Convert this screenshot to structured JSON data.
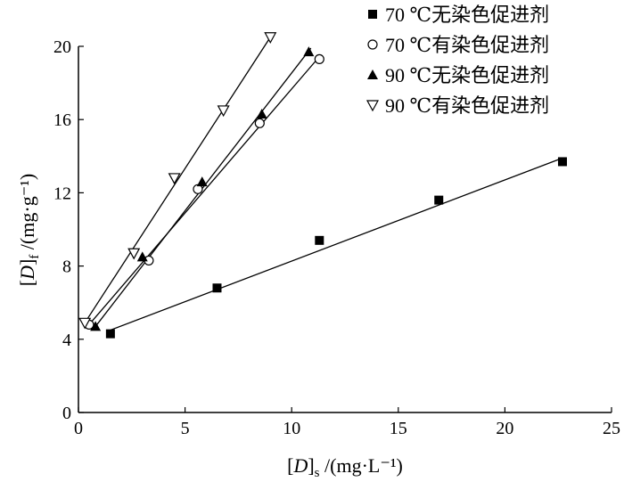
{
  "chart_data": {
    "type": "scatter",
    "xlabel": "[D]s /(mg·L⁻¹)",
    "ylabel": "[D]f /(mg·g⁻¹)",
    "xlim": [
      0,
      25
    ],
    "ylim": [
      0,
      20
    ],
    "xticks": [
      0,
      5,
      10,
      15,
      20,
      25
    ],
    "yticks": [
      0,
      4,
      8,
      12,
      16,
      20
    ],
    "grid": false,
    "legend": "top-right",
    "series": [
      {
        "name": "70 ℃无染色促进剂",
        "marker": "filled-square",
        "points": [
          [
            1.5,
            4.3
          ],
          [
            6.5,
            6.8
          ],
          [
            11.3,
            9.4
          ],
          [
            16.9,
            11.6
          ],
          [
            22.7,
            13.7
          ]
        ],
        "fit": [
          [
            1.5,
            4.5
          ],
          [
            22.7,
            13.9
          ]
        ]
      },
      {
        "name": "70 ℃有染色促进剂",
        "marker": "open-circle",
        "points": [
          [
            0.5,
            4.8
          ],
          [
            3.3,
            8.3
          ],
          [
            5.6,
            12.2
          ],
          [
            8.5,
            15.8
          ],
          [
            11.3,
            19.3
          ]
        ],
        "fit": [
          [
            0.5,
            4.8
          ],
          [
            11.2,
            19.3
          ]
        ]
      },
      {
        "name": "90 ℃无染色促进剂",
        "marker": "filled-triangle-up",
        "points": [
          [
            0.8,
            4.7
          ],
          [
            3.0,
            8.5
          ],
          [
            5.8,
            12.6
          ],
          [
            8.6,
            16.3
          ],
          [
            10.8,
            19.7
          ]
        ],
        "fit": [
          [
            0.8,
            4.7
          ],
          [
            10.9,
            19.9
          ]
        ]
      },
      {
        "name": "90 ℃有染色促进剂",
        "marker": "open-triangle-down",
        "points": [
          [
            0.3,
            4.9
          ],
          [
            2.6,
            8.7
          ],
          [
            4.5,
            12.8
          ],
          [
            6.8,
            16.5
          ],
          [
            9.0,
            20.5
          ]
        ],
        "fit": [
          [
            0.3,
            4.9
          ],
          [
            9.0,
            20.5
          ]
        ]
      }
    ]
  }
}
